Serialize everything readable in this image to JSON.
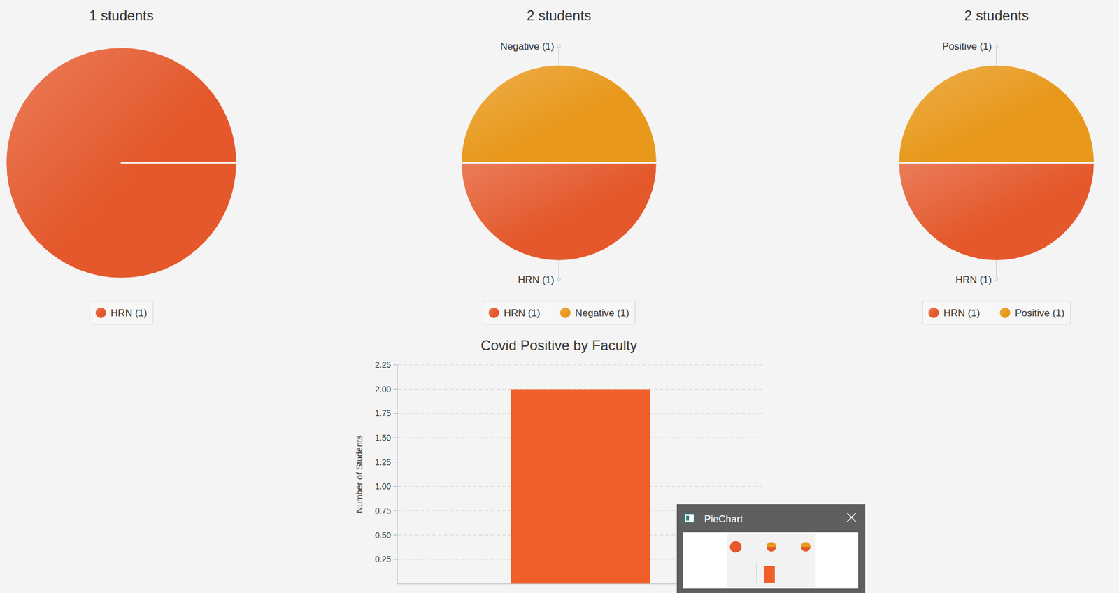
{
  "chart_data": [
    {
      "type": "pie",
      "title": "1 students",
      "categories": [
        "HRN (1)"
      ],
      "values": [
        1
      ],
      "colors": [
        "#e4582b"
      ],
      "legend": "bottom"
    },
    {
      "type": "pie",
      "title": "2 students",
      "categories": [
        "HRN (1)",
        "Negative (1)"
      ],
      "values": [
        1,
        1
      ],
      "colors": [
        "#e4582b",
        "#e8991c"
      ],
      "legend": "bottom"
    },
    {
      "type": "pie",
      "title": "2 students",
      "categories": [
        "HRN (1)",
        "Positive (1)"
      ],
      "values": [
        1,
        1
      ],
      "colors": [
        "#e4582b",
        "#e8991c"
      ],
      "legend": "bottom"
    },
    {
      "type": "bar",
      "title": "Covid Positive by Faculty",
      "ylabel": "Number of Students",
      "categories": [
        null
      ],
      "values": [
        2
      ],
      "color": "#f05f2a",
      "ylim": [
        0,
        2.25
      ],
      "yticks": [
        0.25,
        {
          "value": 0.5,
          "label": "0.50"
        },
        0.75,
        {
          "value": 1,
          "label": "1.00"
        },
        1.25,
        {
          "value": 1.5,
          "label": "1.50"
        },
        1.75,
        {
          "value": 2,
          "label": "2.00"
        },
        2.25
      ],
      "grid": true
    }
  ],
  "taskbar_preview": {
    "title": "PieChart"
  }
}
